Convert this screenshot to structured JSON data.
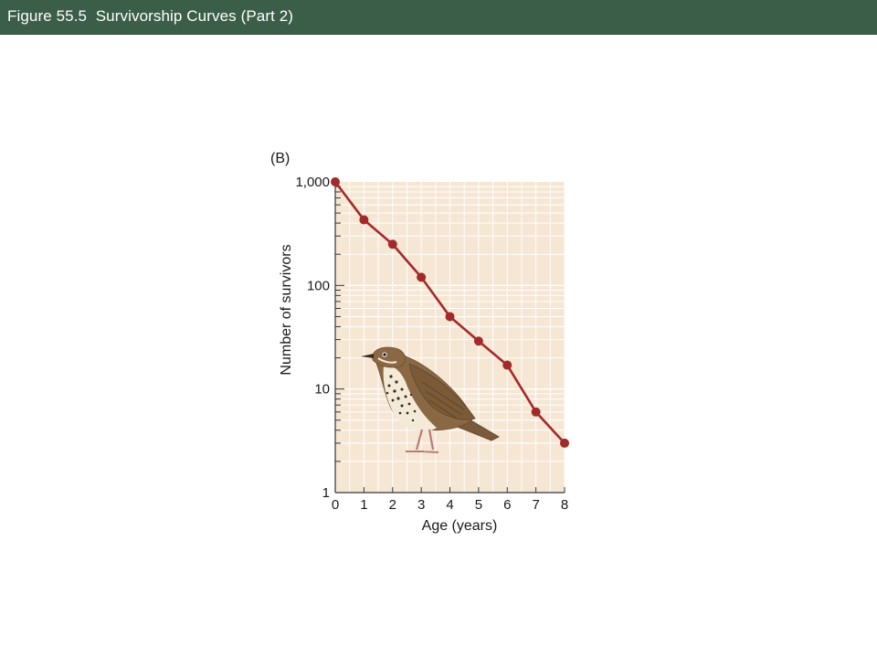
{
  "header": {
    "title": "Figure 55.5  Survivorship Curves (Part 2)"
  },
  "chart_data": {
    "type": "line",
    "panel_label": "(B)",
    "xlabel": "Age (years)",
    "ylabel": "Number of survivors",
    "yscale": "log",
    "xlim": [
      0,
      8
    ],
    "ylim": [
      1,
      1000
    ],
    "x_ticks": [
      "0",
      "1",
      "2",
      "3",
      "4",
      "5",
      "6",
      "7",
      "8"
    ],
    "y_ticks": [
      {
        "value": 1,
        "label": "1"
      },
      {
        "value": 10,
        "label": "10"
      },
      {
        "value": 100,
        "label": "100"
      },
      {
        "value": 1000,
        "label": "1,000"
      }
    ],
    "grid": true,
    "series": [
      {
        "x": [
          0,
          1,
          2,
          3,
          4,
          5,
          6,
          7,
          8
        ],
        "y": [
          1000,
          430,
          250,
          120,
          50,
          29,
          17,
          6,
          3
        ]
      }
    ],
    "colors": {
      "line": "#a32a2a",
      "marker": "#a32a2a",
      "plot_background": "#f6e6d4",
      "grid": "#ffffff"
    },
    "illustration": "thrush-bird"
  }
}
